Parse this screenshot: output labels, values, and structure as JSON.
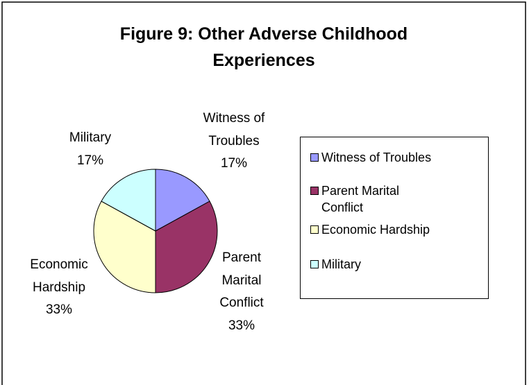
{
  "chart_data": {
    "type": "pie",
    "title": "Figure 9:  Other Adverse Childhood Experiences",
    "categories": [
      "Witness of Troubles",
      "Parent Marital Conflict",
      "Economic Hardship",
      "Military"
    ],
    "values": [
      17,
      33,
      33,
      17
    ],
    "value_labels": [
      "17%",
      "33%",
      "33%",
      "17%"
    ],
    "colors": [
      "#9999ff",
      "#993366",
      "#ffffcc",
      "#ccffff"
    ],
    "legend": "right"
  }
}
